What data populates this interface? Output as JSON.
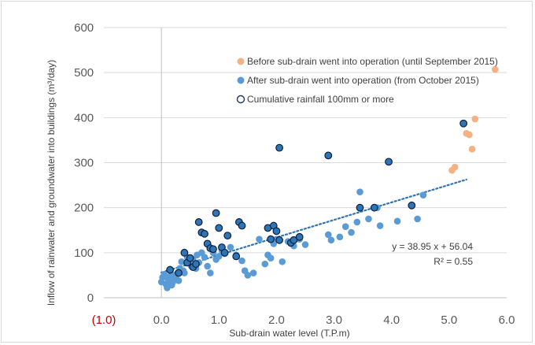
{
  "chart_data": {
    "type": "scatter",
    "xlabel": "Sub-drain water level (T.P.m)",
    "ylabel": "Inflow of rainwater and groundwater into buildings (m³/day)",
    "xlim": [
      -1.0,
      6.0
    ],
    "ylim": [
      0,
      600
    ],
    "x_ticks": [
      {
        "value": -1.0,
        "label": "(1.0)",
        "color": "#c00000"
      },
      {
        "value": 0.0,
        "label": "0.0",
        "color": "#595959"
      },
      {
        "value": 1.0,
        "label": "1.0",
        "color": "#595959"
      },
      {
        "value": 2.0,
        "label": "2.0",
        "color": "#595959"
      },
      {
        "value": 3.0,
        "label": "3.0",
        "color": "#595959"
      },
      {
        "value": 4.0,
        "label": "4.0",
        "color": "#595959"
      },
      {
        "value": 5.0,
        "label": "5.0",
        "color": "#595959"
      },
      {
        "value": 6.0,
        "label": "6.0",
        "color": "#595959"
      }
    ],
    "y_ticks": [
      0,
      100,
      200,
      300,
      400,
      500,
      600
    ],
    "grid": "horizontal",
    "legend_position": "top-right",
    "series": [
      {
        "name": "Before sub-drain went into operation (until September 2015)",
        "marker": "filled-circle",
        "color": "#f4b183",
        "points": [
          [
            5.05,
            283
          ],
          [
            5.1,
            290
          ],
          [
            5.3,
            365
          ],
          [
            5.35,
            362
          ],
          [
            5.4,
            330
          ],
          [
            5.45,
            397
          ],
          [
            5.8,
            507
          ]
        ]
      },
      {
        "name": "After sub-drain went into operation (from October 2015)",
        "marker": "filled-circle",
        "color": "#5b9bd5",
        "points": [
          [
            0.0,
            35
          ],
          [
            0.02,
            45
          ],
          [
            0.05,
            52
          ],
          [
            0.08,
            30
          ],
          [
            0.1,
            22
          ],
          [
            0.12,
            40
          ],
          [
            0.15,
            48
          ],
          [
            0.18,
            28
          ],
          [
            0.2,
            35
          ],
          [
            0.22,
            50
          ],
          [
            0.25,
            42
          ],
          [
            0.28,
            55
          ],
          [
            0.3,
            38
          ],
          [
            0.32,
            65
          ],
          [
            0.35,
            80
          ],
          [
            0.38,
            60
          ],
          [
            0.4,
            55
          ],
          [
            0.45,
            90
          ],
          [
            0.5,
            75
          ],
          [
            0.52,
            70
          ],
          [
            0.55,
            85
          ],
          [
            0.6,
            65
          ],
          [
            0.62,
            95
          ],
          [
            0.65,
            78
          ],
          [
            0.7,
            100
          ],
          [
            0.75,
            90
          ],
          [
            0.8,
            70
          ],
          [
            0.85,
            55
          ],
          [
            0.9,
            100
          ],
          [
            0.95,
            85
          ],
          [
            1.0,
            92
          ],
          [
            1.05,
            105
          ],
          [
            1.1,
            98
          ],
          [
            1.2,
            112
          ],
          [
            1.3,
            95
          ],
          [
            1.4,
            82
          ],
          [
            1.45,
            60
          ],
          [
            1.5,
            50
          ],
          [
            1.6,
            55
          ],
          [
            1.7,
            130
          ],
          [
            1.8,
            75
          ],
          [
            1.85,
            95
          ],
          [
            1.9,
            88
          ],
          [
            1.95,
            120
          ],
          [
            2.0,
            130
          ],
          [
            2.1,
            80
          ],
          [
            2.2,
            125
          ],
          [
            2.3,
            115
          ],
          [
            2.4,
            130
          ],
          [
            2.5,
            118
          ],
          [
            2.9,
            140
          ],
          [
            2.95,
            128
          ],
          [
            3.1,
            135
          ],
          [
            3.2,
            158
          ],
          [
            3.3,
            145
          ],
          [
            3.4,
            168
          ],
          [
            3.45,
            235
          ],
          [
            3.6,
            175
          ],
          [
            3.75,
            200
          ],
          [
            3.8,
            160
          ],
          [
            4.1,
            170
          ],
          [
            4.45,
            175
          ],
          [
            4.55,
            228
          ]
        ]
      },
      {
        "name": "Cumulative rainfall 100mm or more",
        "marker": "outlined-circle",
        "color": "#2e75b6",
        "points": [
          [
            0.15,
            62
          ],
          [
            0.3,
            55
          ],
          [
            0.4,
            100
          ],
          [
            0.45,
            78
          ],
          [
            0.5,
            88
          ],
          [
            0.55,
            68
          ],
          [
            0.6,
            75
          ],
          [
            0.65,
            168
          ],
          [
            0.7,
            145
          ],
          [
            0.75,
            142
          ],
          [
            0.8,
            120
          ],
          [
            0.85,
            110
          ],
          [
            0.9,
            108
          ],
          [
            0.95,
            188
          ],
          [
            1.0,
            155
          ],
          [
            1.05,
            112
          ],
          [
            1.1,
            100
          ],
          [
            1.15,
            138
          ],
          [
            1.3,
            92
          ],
          [
            1.35,
            168
          ],
          [
            1.4,
            160
          ],
          [
            1.85,
            155
          ],
          [
            1.9,
            130
          ],
          [
            1.95,
            160
          ],
          [
            2.0,
            148
          ],
          [
            2.05,
            128
          ],
          [
            2.05,
            333
          ],
          [
            2.25,
            122
          ],
          [
            2.3,
            128
          ],
          [
            2.4,
            135
          ],
          [
            2.9,
            316
          ],
          [
            3.45,
            200
          ],
          [
            3.7,
            200
          ],
          [
            3.95,
            302
          ],
          [
            4.35,
            205
          ],
          [
            5.25,
            387
          ]
        ]
      }
    ],
    "trendline": {
      "style": "dotted",
      "color": "#2e75b6",
      "slope": 38.95,
      "intercept": 56.04,
      "x_range": [
        0.0,
        5.3
      ],
      "equation": "y = 38.95 x + 56.04",
      "r_squared": "R² = 0.55"
    }
  }
}
